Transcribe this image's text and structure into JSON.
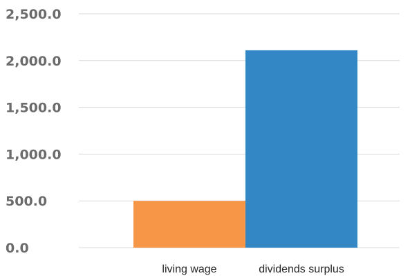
{
  "chart_data": {
    "type": "bar",
    "title": "",
    "xlabel": "",
    "ylabel": "",
    "categories": [
      "living wage",
      "dividends surplus"
    ],
    "values": [
      500.0,
      2110.0
    ],
    "colors": [
      "#F79646",
      "#3287C4"
    ],
    "ylim": [
      0,
      2500
    ],
    "yticks": [
      0,
      500,
      1000,
      1500,
      2000,
      2500
    ],
    "ytick_labels": [
      "0.0",
      "500.0",
      "1,000.0",
      "1,500.0",
      "2,000.0",
      "2,500.0"
    ],
    "grid": true,
    "legend": "none"
  }
}
